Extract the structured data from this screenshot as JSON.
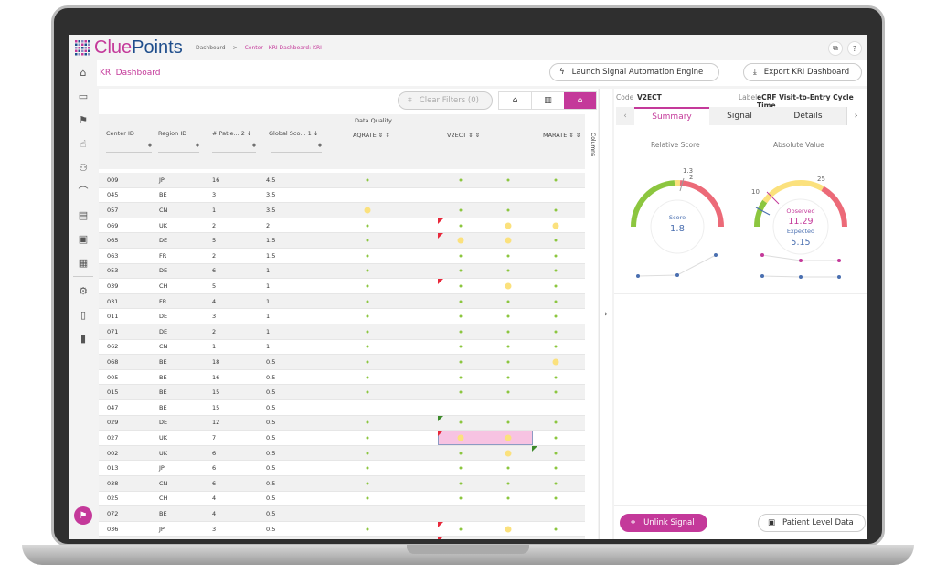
{
  "app": {
    "logo": "CluePoints",
    "breadcrumbs": [
      "Dashboard",
      "Center - KRI Dashboard: KRI"
    ],
    "accent": "#c4399a"
  },
  "topbar": {
    "icons": [
      "users-screen-icon",
      "help-icon"
    ]
  },
  "sidebar": {
    "items": [
      "home-icon",
      "dashboard-icon",
      "flag-icon",
      "touch-icon",
      "users-icon",
      "gauge-icon",
      "clipboard-icon",
      "calendar-icon",
      "id-card-icon",
      "gear-icon",
      "book-icon",
      "document-icon"
    ],
    "bottom": "flag-fab-icon"
  },
  "header": {
    "title": "KRI Dashboard",
    "launch": "Launch Signal Automation Engine",
    "export": "Export KRI Dashboard"
  },
  "table": {
    "clear_filters": "Clear Filters (0)",
    "group": "Data Quality",
    "columns_label": "Columns",
    "headers": [
      "Center ID",
      "Region ID",
      "# Patie...",
      "Global Sco..."
    ],
    "sort_nums": [
      "2",
      "1"
    ],
    "data_headers": [
      "AQRATE",
      "V2ECT",
      "MARATE"
    ],
    "rows": [
      [
        "009",
        "JP",
        "16",
        "4.5",
        "g",
        "g",
        "g",
        "g",
        ""
      ],
      [
        "045",
        "BE",
        "3",
        "3.5",
        "",
        "",
        "",
        "",
        ""
      ],
      [
        "057",
        "CN",
        "1",
        "3.5",
        "y",
        "g",
        "g",
        "g",
        ""
      ],
      [
        "069",
        "UK",
        "2",
        "2",
        "g",
        "g",
        "y",
        "y",
        "r2"
      ],
      [
        "065",
        "DE",
        "5",
        "1.5",
        "g",
        "y",
        "y",
        "g",
        "r2"
      ],
      [
        "063",
        "FR",
        "2",
        "1.5",
        "g",
        "g",
        "g",
        "g",
        ""
      ],
      [
        "053",
        "DE",
        "6",
        "1",
        "g",
        "g",
        "g",
        "g",
        ""
      ],
      [
        "039",
        "CH",
        "5",
        "1",
        "g",
        "g",
        "y",
        "g",
        "r2"
      ],
      [
        "031",
        "FR",
        "4",
        "1",
        "g",
        "g",
        "g",
        "g",
        ""
      ],
      [
        "011",
        "DE",
        "3",
        "1",
        "g",
        "g",
        "g",
        "g",
        ""
      ],
      [
        "071",
        "DE",
        "2",
        "1",
        "g",
        "g",
        "g",
        "g",
        ""
      ],
      [
        "062",
        "CN",
        "1",
        "1",
        "g",
        "g",
        "g",
        "g",
        ""
      ],
      [
        "068",
        "BE",
        "18",
        "0.5",
        "g",
        "g",
        "g",
        "y",
        ""
      ],
      [
        "005",
        "BE",
        "16",
        "0.5",
        "g",
        "g",
        "g",
        "g",
        ""
      ],
      [
        "015",
        "BE",
        "15",
        "0.5",
        "g",
        "g",
        "g",
        "g",
        ""
      ],
      [
        "047",
        "BE",
        "15",
        "0.5",
        "",
        "",
        "",
        "",
        ""
      ],
      [
        "029",
        "DE",
        "12",
        "0.5",
        "g",
        "g",
        "g",
        "g",
        "G2"
      ],
      [
        "027",
        "UK",
        "7",
        "0.5",
        "g",
        "y",
        "y",
        "g",
        "r2h"
      ],
      [
        "002",
        "UK",
        "6",
        "0.5",
        "g",
        "g",
        "y",
        "g",
        "G4"
      ],
      [
        "013",
        "JP",
        "6",
        "0.5",
        "g",
        "g",
        "g",
        "g",
        ""
      ],
      [
        "038",
        "CN",
        "6",
        "0.5",
        "g",
        "g",
        "g",
        "g",
        ""
      ],
      [
        "025",
        "CH",
        "4",
        "0.5",
        "g",
        "g",
        "g",
        "g",
        ""
      ],
      [
        "072",
        "BE",
        "4",
        "0.5",
        "",
        "",
        "",
        "",
        ""
      ],
      [
        "036",
        "JP",
        "3",
        "0.5",
        "g",
        "g",
        "y",
        "g",
        "r2"
      ],
      [
        "059",
        "CN",
        "1",
        "0.5",
        "g",
        "g",
        "y",
        "g",
        "r2"
      ]
    ]
  },
  "panel": {
    "code_label": "Code",
    "code": "V2ECT",
    "label_label": "Label",
    "label": "eCRF Visit-to-Entry Cycle Time",
    "tabs": [
      "Summary",
      "Signal",
      "Details"
    ],
    "relative": {
      "title": "Relative Score",
      "score_label": "Score",
      "score": "1.8",
      "ticks": [
        "1.3",
        "2"
      ]
    },
    "absolute": {
      "title": "Absolute Value",
      "observed_label": "Observed",
      "observed": "11.29",
      "expected_label": "Expected",
      "expected": "5.15",
      "ticks": [
        "10",
        "25"
      ]
    },
    "unlink": "Unlink Signal",
    "patient": "Patient Level Data"
  },
  "colors": {
    "green": "#8cc63f",
    "yellow": "#fbe17d",
    "red": "#ec6a78",
    "blue": "#4a6fb0"
  }
}
